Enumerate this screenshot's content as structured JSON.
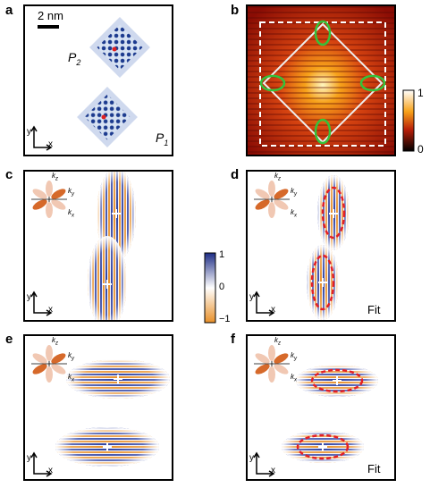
{
  "panels": {
    "a": {
      "letter": "a",
      "scale_bar": "2 nm",
      "p2": "P",
      "p2_sub": "2",
      "p1": "P",
      "p1_sub": "1",
      "axis_y": "y",
      "axis_x": "x"
    },
    "b": {
      "letter": "b",
      "colorbar_max": "1",
      "colorbar_min": "0"
    },
    "c": {
      "letter": "c",
      "axis_y": "y",
      "axis_x": "x",
      "kx": "k",
      "kx_sub": "x",
      "ky": "k",
      "ky_sub": "y",
      "kz": "k",
      "kz_sub": "z"
    },
    "d": {
      "letter": "d",
      "axis_y": "y",
      "axis_x": "x",
      "fit": "Fit",
      "kx": "k",
      "kx_sub": "x",
      "ky": "k",
      "ky_sub": "y",
      "kz": "k",
      "kz_sub": "z"
    },
    "e": {
      "letter": "e",
      "axis_y": "y",
      "axis_x": "x",
      "kx": "k",
      "kx_sub": "x",
      "ky": "k",
      "ky_sub": "y",
      "kz": "k",
      "kz_sub": "z"
    },
    "f": {
      "letter": "f",
      "axis_y": "y",
      "axis_x": "x",
      "fit": "Fit",
      "kx": "k",
      "kx_sub": "x",
      "ky": "k",
      "ky_sub": "y",
      "kz": "k",
      "kz_sub": "z"
    }
  },
  "colorbar_middle": {
    "max": "1",
    "mid": "0",
    "min": "−1"
  },
  "colors": {
    "blue": "#2b3ea0",
    "orange": "#e8902a",
    "red_dash": "#e21f26",
    "green": "#35c23a",
    "hot_bg": "#b81f0a"
  }
}
